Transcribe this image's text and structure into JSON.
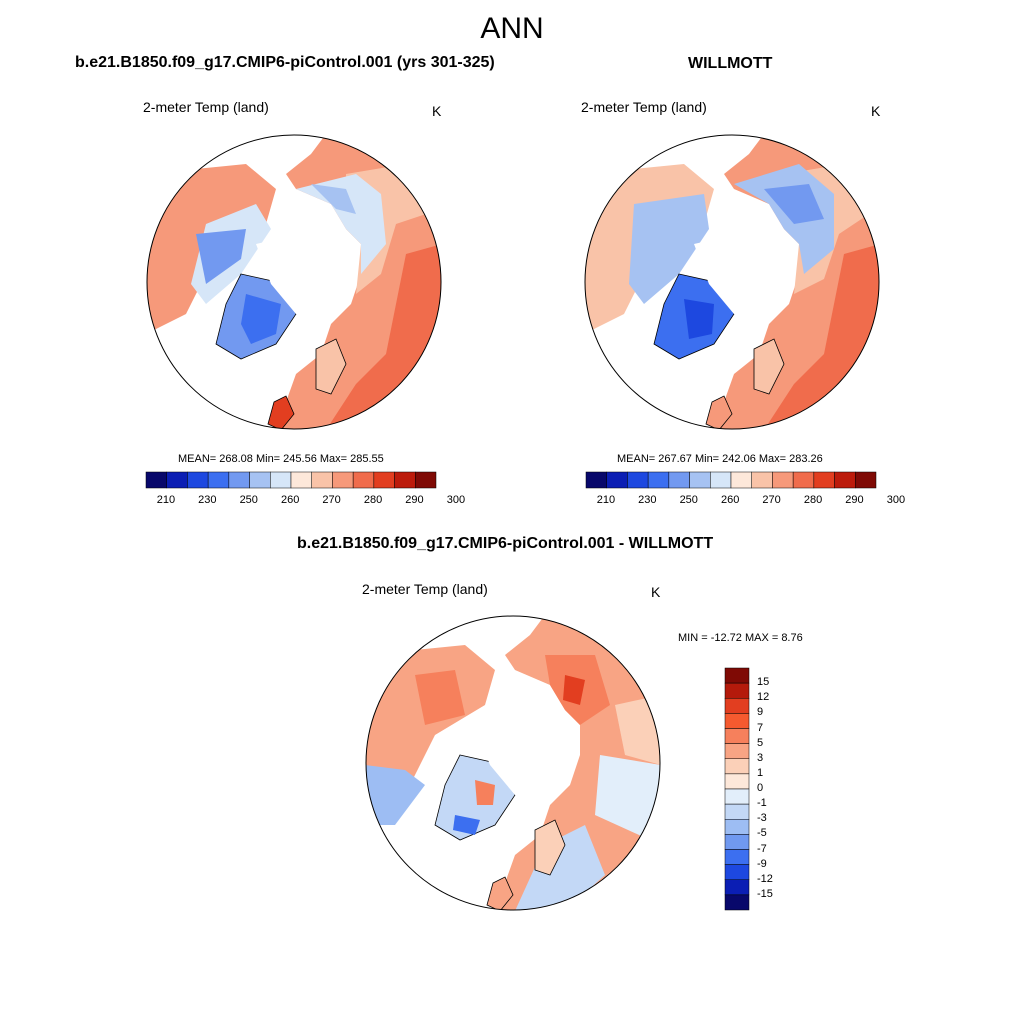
{
  "figure": {
    "title": "ANN"
  },
  "panels": [
    {
      "title": "b.e21.B1850.f09_g17.CMIP6-piControl.001 (yrs 301-325)",
      "variable": "2-meter Temp (land)",
      "units": "K",
      "stats": "MEAN= 268.08  Min= 245.56  Max= 285.55",
      "colorbar_ticks": [
        "210",
        "230",
        "250",
        "260",
        "270",
        "280",
        "290",
        "300"
      ]
    },
    {
      "title": "WILLMOTT",
      "variable": "2-meter Temp (land)",
      "units": "K",
      "stats": "MEAN= 267.67  Min= 242.06  Max= 283.26",
      "colorbar_ticks": [
        "210",
        "230",
        "250",
        "260",
        "270",
        "280",
        "290",
        "300"
      ]
    },
    {
      "title": "b.e21.B1850.f09_g17.CMIP6-piControl.001 - WILLMOTT",
      "variable": "2-meter Temp (land)",
      "units": "K",
      "stats": "MIN = -12.72 MAX =   8.76",
      "colorbar_ticks": [
        "15",
        "12",
        "9",
        "7",
        "5",
        "3",
        "1",
        "0",
        "-1",
        "-3",
        "-5",
        "-7",
        "-9",
        "-12",
        "-15"
      ]
    }
  ],
  "colors": {
    "abs_palette": [
      "#08086b",
      "#0b1eb4",
      "#1d48e0",
      "#3c6ff0",
      "#7299f0",
      "#a6c2f2",
      "#d6e6f8",
      "#fde8da",
      "#f9c3a8",
      "#f6997a",
      "#f06c4c",
      "#e23e20",
      "#bc1b0b",
      "#7f0a05"
    ],
    "diff_palette": [
      "#7f0a05",
      "#b41a0b",
      "#e23e20",
      "#f55a2f",
      "#f6805c",
      "#f8a484",
      "#fbd0b8",
      "#fde8da",
      "#e2eefa",
      "#c3d8f6",
      "#9dbdf3",
      "#7099f0",
      "#3c6ff0",
      "#1d48e0",
      "#0b1eb4",
      "#08086b"
    ]
  }
}
